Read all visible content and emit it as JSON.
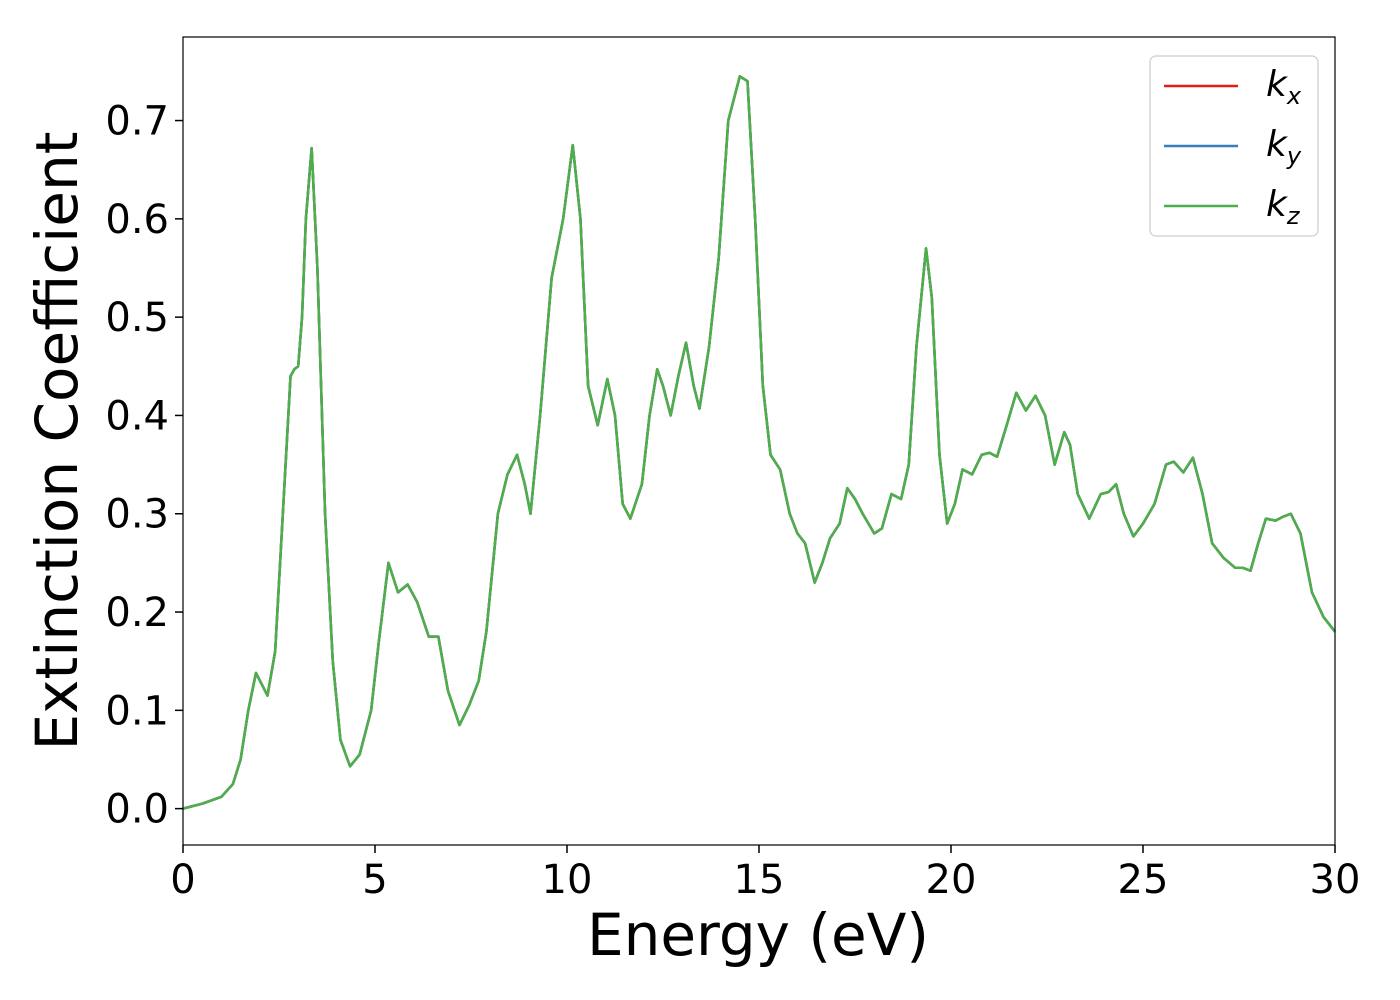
{
  "chart_data": {
    "type": "line",
    "xlabel": "Energy (eV)",
    "ylabel": "Extinction Coefficient",
    "xlim": [
      0,
      30
    ],
    "ylim": [
      -0.037,
      0.785
    ],
    "xticks": [
      0,
      5,
      10,
      15,
      20,
      25,
      30
    ],
    "yticks": [
      {
        "value": 0,
        "label": "0.0"
      },
      0.1,
      0.2,
      0.3,
      0.4,
      0.5,
      0.6,
      0.7
    ],
    "legend": "upper right",
    "x": [
      0,
      0.5,
      1.0,
      1.3,
      1.5,
      1.7,
      1.9,
      2.2,
      2.4,
      2.6,
      2.8,
      2.9,
      3.0,
      3.1,
      3.2,
      3.35,
      3.5,
      3.7,
      3.9,
      4.1,
      4.35,
      4.6,
      4.9,
      5.1,
      5.35,
      5.6,
      5.85,
      6.1,
      6.4,
      6.65,
      6.9,
      7.2,
      7.45,
      7.7,
      7.9,
      8.2,
      8.45,
      8.7,
      8.9,
      9.05,
      9.3,
      9.6,
      9.9,
      10.15,
      10.35,
      10.55,
      10.8,
      11.05,
      11.25,
      11.45,
      11.65,
      11.95,
      12.15,
      12.35,
      12.5,
      12.7,
      12.9,
      13.1,
      13.3,
      13.45,
      13.7,
      13.95,
      14.2,
      14.5,
      14.7,
      14.9,
      15.1,
      15.3,
      15.55,
      15.8,
      16.0,
      16.2,
      16.45,
      16.65,
      16.85,
      17.1,
      17.3,
      17.5,
      17.7,
      18.0,
      18.2,
      18.45,
      18.7,
      18.9,
      19.1,
      19.35,
      19.5,
      19.7,
      19.9,
      20.1,
      20.3,
      20.55,
      20.8,
      21.0,
      21.2,
      21.45,
      21.7,
      21.95,
      22.2,
      22.45,
      22.7,
      22.95,
      23.1,
      23.3,
      23.6,
      23.9,
      24.1,
      24.3,
      24.5,
      24.75,
      25.0,
      25.3,
      25.6,
      25.8,
      26.05,
      26.3,
      26.55,
      26.8,
      27.1,
      27.4,
      27.6,
      27.8,
      28.0,
      28.2,
      28.45,
      28.65,
      28.85,
      29.1,
      29.4,
      29.7,
      30.0
    ],
    "series": [
      {
        "name": "kx",
        "color": "#e41a1c",
        "values": [
          0,
          0.005,
          0.012,
          0.025,
          0.05,
          0.1,
          0.138,
          0.115,
          0.16,
          0.3,
          0.44,
          0.447,
          0.45,
          0.5,
          0.6,
          0.672,
          0.55,
          0.3,
          0.15,
          0.07,
          0.043,
          0.055,
          0.1,
          0.17,
          0.25,
          0.22,
          0.228,
          0.21,
          0.175,
          0.175,
          0.12,
          0.085,
          0.105,
          0.13,
          0.18,
          0.3,
          0.34,
          0.36,
          0.33,
          0.3,
          0.4,
          0.54,
          0.6,
          0.675,
          0.6,
          0.43,
          0.39,
          0.437,
          0.4,
          0.31,
          0.295,
          0.33,
          0.4,
          0.447,
          0.43,
          0.4,
          0.44,
          0.474,
          0.43,
          0.407,
          0.47,
          0.56,
          0.7,
          0.745,
          0.74,
          0.6,
          0.43,
          0.36,
          0.345,
          0.3,
          0.28,
          0.27,
          0.23,
          0.25,
          0.275,
          0.29,
          0.326,
          0.315,
          0.3,
          0.28,
          0.285,
          0.32,
          0.315,
          0.35,
          0.47,
          0.57,
          0.52,
          0.36,
          0.29,
          0.31,
          0.345,
          0.34,
          0.36,
          0.362,
          0.358,
          0.39,
          0.423,
          0.405,
          0.42,
          0.4,
          0.35,
          0.383,
          0.37,
          0.32,
          0.295,
          0.32,
          0.322,
          0.33,
          0.3,
          0.277,
          0.29,
          0.31,
          0.35,
          0.353,
          0.342,
          0.357,
          0.32,
          0.27,
          0.255,
          0.245,
          0.245,
          0.242,
          0.27,
          0.295,
          0.293,
          0.297,
          0.3,
          0.28,
          0.22,
          0.195,
          0.18
        ]
      },
      {
        "name": "ky",
        "color": "#377eb8",
        "values": [
          0,
          0.005,
          0.012,
          0.025,
          0.05,
          0.1,
          0.138,
          0.115,
          0.16,
          0.3,
          0.44,
          0.447,
          0.45,
          0.5,
          0.6,
          0.672,
          0.55,
          0.3,
          0.15,
          0.07,
          0.043,
          0.055,
          0.1,
          0.17,
          0.25,
          0.22,
          0.228,
          0.21,
          0.175,
          0.175,
          0.12,
          0.085,
          0.105,
          0.13,
          0.18,
          0.3,
          0.34,
          0.36,
          0.33,
          0.3,
          0.4,
          0.54,
          0.6,
          0.675,
          0.6,
          0.43,
          0.39,
          0.437,
          0.4,
          0.31,
          0.295,
          0.33,
          0.4,
          0.447,
          0.43,
          0.4,
          0.44,
          0.474,
          0.43,
          0.407,
          0.47,
          0.56,
          0.7,
          0.745,
          0.74,
          0.6,
          0.43,
          0.36,
          0.345,
          0.3,
          0.28,
          0.27,
          0.23,
          0.25,
          0.275,
          0.29,
          0.326,
          0.315,
          0.3,
          0.28,
          0.285,
          0.32,
          0.315,
          0.35,
          0.47,
          0.57,
          0.52,
          0.36,
          0.29,
          0.31,
          0.345,
          0.34,
          0.36,
          0.362,
          0.358,
          0.39,
          0.423,
          0.405,
          0.42,
          0.4,
          0.35,
          0.383,
          0.37,
          0.32,
          0.295,
          0.32,
          0.322,
          0.33,
          0.3,
          0.277,
          0.29,
          0.31,
          0.35,
          0.353,
          0.342,
          0.357,
          0.32,
          0.27,
          0.255,
          0.245,
          0.245,
          0.242,
          0.27,
          0.295,
          0.293,
          0.297,
          0.3,
          0.28,
          0.22,
          0.195,
          0.18
        ]
      },
      {
        "name": "kz",
        "color": "#4daf4a",
        "values": [
          0,
          0.005,
          0.012,
          0.025,
          0.05,
          0.1,
          0.138,
          0.115,
          0.16,
          0.3,
          0.44,
          0.447,
          0.45,
          0.5,
          0.6,
          0.672,
          0.55,
          0.3,
          0.15,
          0.07,
          0.043,
          0.055,
          0.1,
          0.17,
          0.25,
          0.22,
          0.228,
          0.21,
          0.175,
          0.175,
          0.12,
          0.085,
          0.105,
          0.13,
          0.18,
          0.3,
          0.34,
          0.36,
          0.33,
          0.3,
          0.4,
          0.54,
          0.6,
          0.675,
          0.6,
          0.43,
          0.39,
          0.437,
          0.4,
          0.31,
          0.295,
          0.33,
          0.4,
          0.447,
          0.43,
          0.4,
          0.44,
          0.474,
          0.43,
          0.407,
          0.47,
          0.56,
          0.7,
          0.745,
          0.74,
          0.6,
          0.43,
          0.36,
          0.345,
          0.3,
          0.28,
          0.27,
          0.23,
          0.25,
          0.275,
          0.29,
          0.326,
          0.315,
          0.3,
          0.28,
          0.285,
          0.32,
          0.315,
          0.35,
          0.47,
          0.57,
          0.52,
          0.36,
          0.29,
          0.31,
          0.345,
          0.34,
          0.36,
          0.362,
          0.358,
          0.39,
          0.423,
          0.405,
          0.42,
          0.4,
          0.35,
          0.383,
          0.37,
          0.32,
          0.295,
          0.32,
          0.322,
          0.33,
          0.3,
          0.277,
          0.29,
          0.31,
          0.35,
          0.353,
          0.342,
          0.357,
          0.32,
          0.27,
          0.255,
          0.245,
          0.245,
          0.242,
          0.27,
          0.295,
          0.293,
          0.297,
          0.3,
          0.28,
          0.22,
          0.195,
          0.18
        ]
      }
    ]
  }
}
